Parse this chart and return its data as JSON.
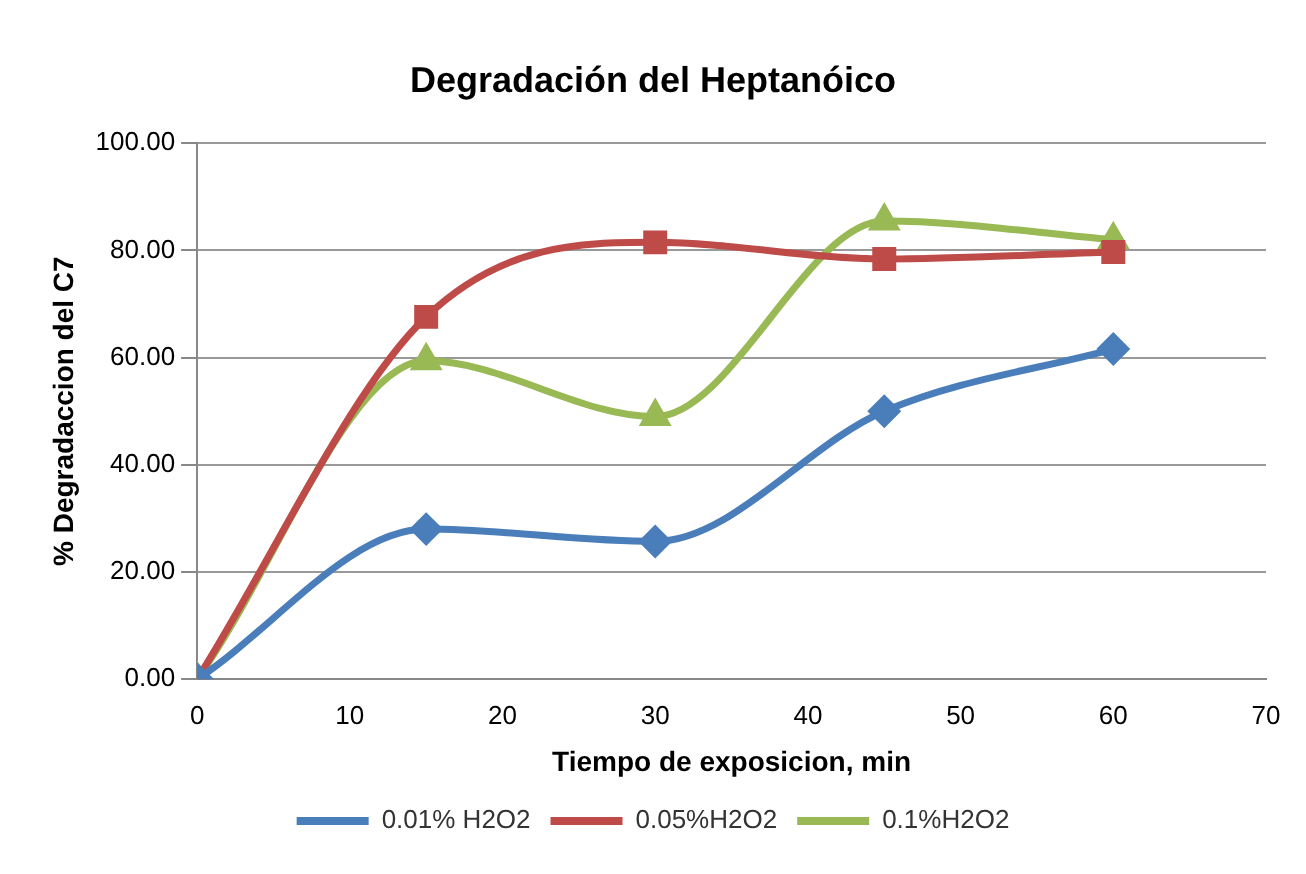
{
  "chart_data": {
    "type": "line",
    "title": "Degradación del Heptanóico",
    "xlabel": "Tiempo de exposicion, min",
    "ylabel": "% Degradaccion del C7",
    "x": [
      0,
      15,
      30,
      45,
      60
    ],
    "series": [
      {
        "name": "0.01% H2O2",
        "color": "#4a7ebb",
        "marker": "diamond",
        "values": [
          0,
          28,
          25.7,
          50,
          61.6
        ]
      },
      {
        "name": "0.05%H2O2",
        "color": "#be4b48",
        "marker": "square",
        "values": [
          0,
          67.6,
          81.5,
          78.4,
          79.7
        ]
      },
      {
        "name": "0.1%H2O2",
        "color": "#98b954",
        "marker": "triangle",
        "values": [
          0,
          59.4,
          49,
          85.5,
          82
        ]
      }
    ],
    "xlim": [
      0,
      70
    ],
    "xticks": [
      0,
      10,
      20,
      30,
      40,
      50,
      60,
      70
    ],
    "ylim": [
      0,
      100
    ],
    "yticks": [
      {
        "value": 0,
        "label": "0.00"
      },
      {
        "value": 20,
        "label": "20.00"
      },
      {
        "value": 40,
        "label": "40.00"
      },
      {
        "value": 60,
        "label": "60.00"
      },
      {
        "value": 80,
        "label": "80.00"
      },
      {
        "value": 100,
        "label": "100.00"
      }
    ],
    "grid": "y",
    "legend": "bottom",
    "line_style": "solid"
  }
}
